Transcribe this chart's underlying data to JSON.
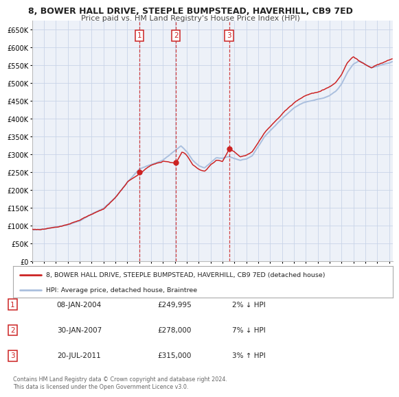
{
  "title": "8, BOWER HALL DRIVE, STEEPLE BUMPSTEAD, HAVERHILL, CB9 7ED",
  "subtitle": "Price paid vs. HM Land Registry's House Price Index (HPI)",
  "legend_line1": "8, BOWER HALL DRIVE, STEEPLE BUMPSTEAD, HAVERHILL, CB9 7ED (detached house)",
  "legend_line2": "HPI: Average price, detached house, Braintree",
  "footer1": "Contains HM Land Registry data © Crown copyright and database right 2024.",
  "footer2": "This data is licensed under the Open Government Licence v3.0.",
  "transactions": [
    {
      "num": 1,
      "date": "08-JAN-2004",
      "price": "£249,995",
      "change": "2% ↓ HPI",
      "year": 2004.03,
      "price_val": 249995
    },
    {
      "num": 2,
      "date": "30-JAN-2007",
      "price": "£278,000",
      "change": "7% ↓ HPI",
      "year": 2007.08,
      "price_val": 278000
    },
    {
      "num": 3,
      "date": "20-JUL-2011",
      "price": "£315,000",
      "change": "3% ↑ HPI",
      "year": 2011.55,
      "price_val": 315000
    }
  ],
  "hpi_color": "#aabfde",
  "price_color": "#cc2222",
  "marker_color": "#cc2222",
  "vline_color": "#cc2222",
  "background_color": "#ffffff",
  "chart_bg_color": "#edf1f8",
  "grid_color": "#c8d4e8",
  "ylim": [
    0,
    675000
  ],
  "xlim_start": 1995.0,
  "xlim_end": 2025.3,
  "yticks": [
    0,
    50000,
    100000,
    150000,
    200000,
    250000,
    300000,
    350000,
    400000,
    450000,
    500000,
    550000,
    600000,
    650000
  ],
  "xticks": [
    1995,
    1996,
    1997,
    1998,
    1999,
    2000,
    2001,
    2002,
    2003,
    2004,
    2005,
    2006,
    2007,
    2008,
    2009,
    2010,
    2011,
    2012,
    2013,
    2014,
    2015,
    2016,
    2017,
    2018,
    2019,
    2020,
    2021,
    2022,
    2023,
    2024,
    2025
  ]
}
